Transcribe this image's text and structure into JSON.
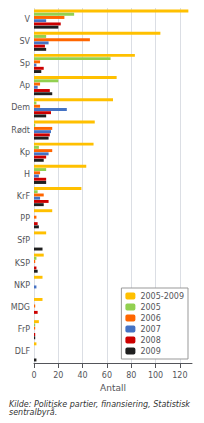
{
  "chart_data": {
    "type": "bar",
    "orientation": "horizontal",
    "categories": [
      "V",
      "SV",
      "Sp",
      "Ap",
      "Dem",
      "Rødt",
      "Kp",
      "H",
      "KrF",
      "PP",
      "SfP",
      "KSP",
      "NKP",
      "MDG",
      "FrP",
      "DLF"
    ],
    "series": [
      {
        "name": "2005-2009",
        "color": "#FFC000",
        "values": [
          127,
          104,
          83,
          68,
          65,
          50,
          49,
          43,
          39,
          15,
          10,
          8,
          7,
          7,
          4,
          2
        ]
      },
      {
        "name": "2005",
        "color": "#92D050",
        "values": [
          33,
          10,
          63,
          20,
          2,
          1,
          4,
          10,
          3,
          0,
          0,
          2,
          0,
          0,
          1,
          0
        ]
      },
      {
        "name": "2006",
        "color": "#FF6600",
        "values": [
          25,
          46,
          5,
          5,
          5,
          15,
          15,
          5,
          8,
          2,
          0,
          1,
          0,
          1,
          1,
          0
        ]
      },
      {
        "name": "2007",
        "color": "#4472C4",
        "values": [
          10,
          12,
          2,
          3,
          27,
          14,
          12,
          4,
          5,
          0,
          0,
          0,
          2,
          0,
          0,
          0
        ]
      },
      {
        "name": "2008",
        "color": "#CC0000",
        "values": [
          22,
          9,
          8,
          13,
          14,
          13,
          10,
          10,
          12,
          3,
          0,
          2,
          0,
          3,
          1,
          0
        ]
      },
      {
        "name": "2009",
        "color": "#1F1F1F",
        "values": [
          20,
          10,
          6,
          15,
          10,
          12,
          8,
          10,
          8,
          4,
          7,
          3,
          0,
          0,
          1,
          2
        ]
      }
    ],
    "xlabel": "Antall",
    "xlim": [
      0,
      130
    ],
    "xticks": [
      0,
      20,
      40,
      60,
      80,
      100,
      120
    ],
    "grid": true,
    "legend": "lower right",
    "annotations": [
      "Kilde: Politiske partier, finansiering, Statistisk sentralbyrå."
    ]
  }
}
